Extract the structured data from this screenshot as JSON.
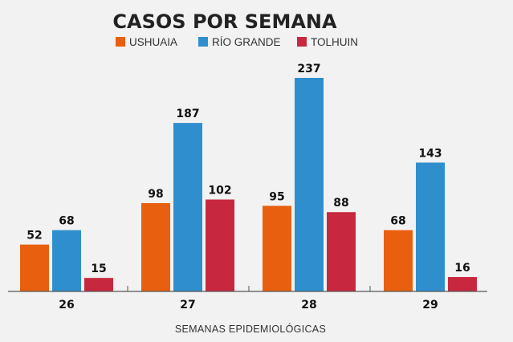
{
  "chart_data": {
    "type": "bar",
    "title": "CASOS POR SEMANA",
    "xlabel": "SEMANAS EPIDEMIOLÓGICAS",
    "ylabel": "",
    "categories": [
      "26",
      "27",
      "28",
      "29"
    ],
    "series": [
      {
        "name": "USHUAIA",
        "color": "#e8600f",
        "values": [
          52,
          98,
          95,
          68
        ]
      },
      {
        "name": "RÍO GRANDE",
        "color": "#2f8fce",
        "values": [
          68,
          187,
          237,
          143
        ]
      },
      {
        "name": "TOLHUIN",
        "color": "#c8283f",
        "values": [
          15,
          102,
          88,
          16
        ]
      }
    ],
    "ylim": [
      0,
      237
    ],
    "grid": false,
    "legend_position": "top-center",
    "data_labels": true
  }
}
